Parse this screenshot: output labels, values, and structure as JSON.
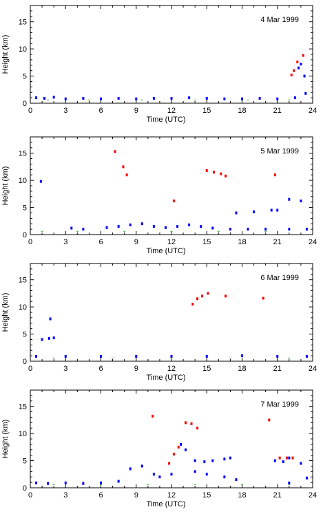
{
  "chart_data": [
    {
      "type": "scatter",
      "title": "4 Mar 1999",
      "xlabel": "Time (UTC)",
      "ylabel": "Height (km)",
      "xlim": [
        0,
        24
      ],
      "ylim": [
        0,
        18
      ],
      "xticks": [
        "0",
        "3",
        "6",
        "9",
        "12",
        "15",
        "18",
        "21",
        "24"
      ],
      "yticks": [
        "0",
        "5",
        "10",
        "15"
      ],
      "series": [
        {
          "color": "#0000ff",
          "points": [
            [
              0.5,
              1.0
            ],
            [
              1.2,
              0.9
            ],
            [
              2.0,
              1.1
            ],
            [
              3.0,
              0.8
            ],
            [
              4.5,
              0.9
            ],
            [
              6.0,
              0.8
            ],
            [
              7.5,
              0.9
            ],
            [
              9.0,
              0.8
            ],
            [
              10.5,
              0.9
            ],
            [
              12.0,
              0.9
            ],
            [
              13.5,
              1.0
            ],
            [
              15.0,
              0.9
            ],
            [
              16.5,
              0.8
            ],
            [
              18.0,
              0.8
            ],
            [
              19.5,
              0.9
            ],
            [
              21.0,
              0.8
            ],
            [
              22.5,
              1.0
            ],
            [
              23.4,
              1.8
            ],
            [
              22.8,
              6.5
            ],
            [
              23.0,
              7.2
            ],
            [
              23.3,
              5.0
            ]
          ]
        },
        {
          "color": "#ff0000",
          "points": [
            [
              22.2,
              5.2
            ],
            [
              22.4,
              6.0
            ],
            [
              22.7,
              7.6
            ],
            [
              23.2,
              8.8
            ]
          ]
        },
        {
          "color": "#33aa33",
          "points": [
            [
              1.5,
              0.6
            ],
            [
              5.0,
              0.6
            ],
            [
              9.5,
              0.6
            ],
            [
              14.0,
              0.6
            ],
            [
              18.5,
              0.6
            ],
            [
              22.0,
              0.6
            ]
          ]
        }
      ]
    },
    {
      "type": "scatter",
      "title": "5 Mar 1999",
      "xlabel": "Time (UTC)",
      "ylabel": "Height (km)",
      "xlim": [
        0,
        24
      ],
      "ylim": [
        0,
        18
      ],
      "xticks": [
        "0",
        "3",
        "6",
        "9",
        "12",
        "15",
        "18",
        "21",
        "24"
      ],
      "yticks": [
        "0",
        "5",
        "10",
        "15"
      ],
      "series": [
        {
          "color": "#0000ff",
          "points": [
            [
              0.9,
              9.8
            ],
            [
              3.5,
              1.2
            ],
            [
              4.5,
              1.0
            ],
            [
              6.5,
              1.3
            ],
            [
              7.5,
              1.5
            ],
            [
              8.5,
              1.8
            ],
            [
              9.5,
              2.0
            ],
            [
              10.5,
              1.5
            ],
            [
              11.5,
              1.3
            ],
            [
              12.5,
              1.5
            ],
            [
              13.5,
              1.8
            ],
            [
              14.5,
              1.5
            ],
            [
              15.5,
              1.2
            ],
            [
              17.0,
              1.0
            ],
            [
              18.5,
              1.0
            ],
            [
              20.0,
              1.0
            ],
            [
              22.0,
              1.0
            ],
            [
              23.5,
              1.0
            ],
            [
              17.5,
              4.0
            ],
            [
              19.0,
              4.2
            ],
            [
              20.5,
              4.5
            ],
            [
              21.0,
              4.5
            ],
            [
              22.0,
              6.5
            ],
            [
              23.0,
              6.2
            ]
          ]
        },
        {
          "color": "#ff0000",
          "points": [
            [
              7.2,
              15.3
            ],
            [
              7.9,
              12.5
            ],
            [
              8.2,
              11.0
            ],
            [
              15.0,
              11.8
            ],
            [
              15.6,
              11.5
            ],
            [
              16.2,
              11.2
            ],
            [
              16.6,
              10.8
            ],
            [
              20.8,
              11.0
            ],
            [
              12.2,
              6.2
            ]
          ]
        },
        {
          "color": "#33aa33",
          "points": [
            [
              1.0,
              0.6
            ],
            [
              4.0,
              0.6
            ],
            [
              8.0,
              0.6
            ],
            [
              12.0,
              0.6
            ],
            [
              16.0,
              0.6
            ],
            [
              20.0,
              0.6
            ]
          ]
        }
      ]
    },
    {
      "type": "scatter",
      "title": "6 Mar 1999",
      "xlabel": "Time (UTC)",
      "ylabel": "Height (km)",
      "xlim": [
        0,
        24
      ],
      "ylim": [
        0,
        18
      ],
      "xticks": [
        "0",
        "3",
        "6",
        "9",
        "12",
        "15",
        "18",
        "21",
        "24"
      ],
      "yticks": [
        "0",
        "5",
        "10",
        "15"
      ],
      "series": [
        {
          "color": "#0000ff",
          "points": [
            [
              1.0,
              4.0
            ],
            [
              1.6,
              4.2
            ],
            [
              2.0,
              4.3
            ],
            [
              1.7,
              7.8
            ],
            [
              0.5,
              0.9
            ],
            [
              3.0,
              0.9
            ],
            [
              6.0,
              0.9
            ],
            [
              9.0,
              0.9
            ],
            [
              12.0,
              0.9
            ],
            [
              15.0,
              0.9
            ],
            [
              18.0,
              1.0
            ],
            [
              21.0,
              0.9
            ],
            [
              23.5,
              0.9
            ]
          ]
        },
        {
          "color": "#ff0000",
          "points": [
            [
              13.8,
              10.5
            ],
            [
              14.2,
              11.5
            ],
            [
              14.6,
              12.0
            ],
            [
              15.1,
              12.5
            ],
            [
              16.6,
              12.0
            ],
            [
              19.8,
              11.6
            ]
          ]
        },
        {
          "color": "#33aa33",
          "points": [
            [
              2.0,
              0.6
            ],
            [
              7.0,
              0.6
            ],
            [
              12.0,
              0.6
            ],
            [
              17.0,
              0.6
            ],
            [
              22.0,
              0.6
            ]
          ]
        }
      ]
    },
    {
      "type": "scatter",
      "title": "7 Mar 1999",
      "xlabel": "Time (UTC)",
      "ylabel": "Height (km)",
      "xlim": [
        0,
        24
      ],
      "ylim": [
        0,
        18
      ],
      "xticks": [
        "0",
        "3",
        "6",
        "9",
        "12",
        "15",
        "18",
        "21",
        "24"
      ],
      "yticks": [
        "0",
        "5",
        "10",
        "15"
      ],
      "series": [
        {
          "color": "#0000ff",
          "points": [
            [
              0.5,
              0.9
            ],
            [
              1.5,
              0.8
            ],
            [
              3.0,
              0.9
            ],
            [
              4.5,
              0.8
            ],
            [
              6.0,
              0.9
            ],
            [
              7.5,
              1.2
            ],
            [
              8.5,
              3.5
            ],
            [
              9.5,
              4.0
            ],
            [
              10.5,
              2.5
            ],
            [
              11.0,
              2.0
            ],
            [
              12.0,
              2.5
            ],
            [
              12.8,
              8.0
            ],
            [
              13.2,
              7.0
            ],
            [
              14.0,
              5.0
            ],
            [
              14.8,
              4.8
            ],
            [
              15.5,
              5.0
            ],
            [
              16.5,
              5.3
            ],
            [
              17.0,
              5.5
            ],
            [
              14.0,
              3.0
            ],
            [
              15.0,
              2.5
            ],
            [
              16.5,
              2.0
            ],
            [
              17.5,
              1.5
            ],
            [
              20.8,
              5.0
            ],
            [
              21.5,
              4.8
            ],
            [
              22.0,
              5.5
            ],
            [
              23.0,
              4.5
            ],
            [
              23.5,
              1.8
            ],
            [
              22.0,
              0.9
            ]
          ]
        },
        {
          "color": "#ff0000",
          "points": [
            [
              10.4,
              13.2
            ],
            [
              11.8,
              4.5
            ],
            [
              12.2,
              6.2
            ],
            [
              12.6,
              7.5
            ],
            [
              13.2,
              12.0
            ],
            [
              13.7,
              11.8
            ],
            [
              14.2,
              11.0
            ],
            [
              20.3,
              12.5
            ],
            [
              21.2,
              5.5
            ],
            [
              21.8,
              5.5
            ],
            [
              22.3,
              5.5
            ]
          ]
        },
        {
          "color": "#33aa33",
          "points": [
            [
              2.0,
              0.6
            ],
            [
              6.0,
              0.6
            ],
            [
              10.0,
              0.6
            ],
            [
              14.0,
              0.6
            ],
            [
              18.0,
              0.6
            ],
            [
              22.0,
              0.6
            ]
          ]
        }
      ]
    }
  ]
}
